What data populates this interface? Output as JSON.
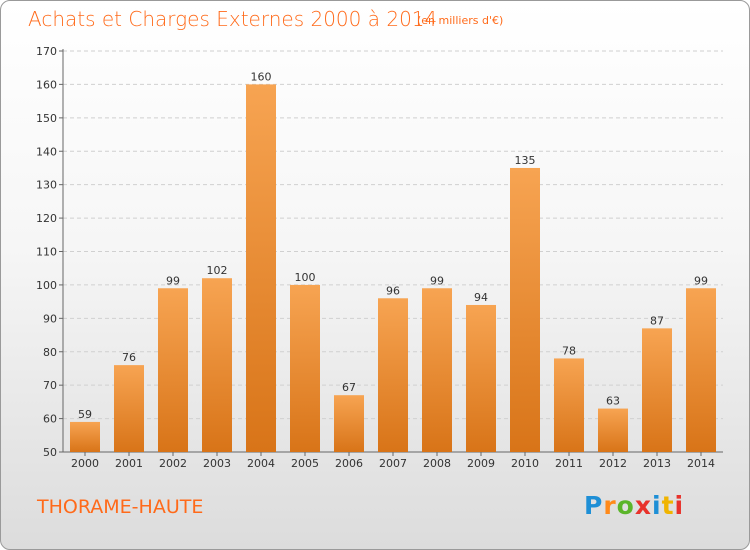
{
  "header": {
    "title": "Achats et Charges Externes 2000 à 2014",
    "subtitle": "(en milliers d'€)"
  },
  "footer": {
    "commune": "THORAME-HAUTE",
    "logo_text": "Proxiti",
    "logo_colors": [
      "#1e8fd6",
      "#ff8a1a",
      "#5bb52a",
      "#e8322b",
      "#1e8fd6",
      "#f0b400",
      "#e8322b"
    ]
  },
  "colors": {
    "bar_top": "#f7a452",
    "bar_bottom": "#d87418",
    "accent": "#ff6a1a"
  },
  "chart_data": {
    "type": "bar",
    "title": "Achats et Charges Externes 2000 à 2014",
    "xlabel": "",
    "ylabel": "",
    "ylim": [
      50,
      170
    ],
    "yticks": [
      50,
      60,
      70,
      80,
      90,
      100,
      110,
      120,
      130,
      140,
      150,
      160,
      170
    ],
    "grid": true,
    "categories": [
      "2000",
      "2001",
      "2002",
      "2003",
      "2004",
      "2005",
      "2006",
      "2007",
      "2008",
      "2009",
      "2010",
      "2011",
      "2012",
      "2013",
      "2014"
    ],
    "values": [
      59,
      76,
      99,
      102,
      160,
      100,
      67,
      96,
      99,
      94,
      135,
      78,
      63,
      87,
      99
    ]
  }
}
